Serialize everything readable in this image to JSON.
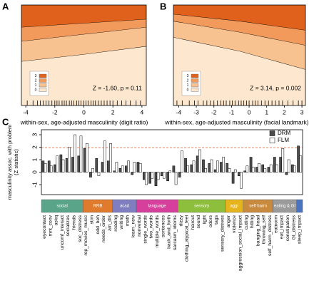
{
  "chart_data": [
    {
      "type": "stacked_area",
      "panel": "A",
      "xlabel": "within-sex, age-adjusted masculinity (digit ratio)",
      "annotation": "Z = -1.60, p = 0.11",
      "xlim": [
        -4.3,
        4.3
      ],
      "xticks": [
        -4,
        -2,
        0,
        2,
        4
      ],
      "ylim": [
        0,
        1
      ],
      "x": [
        -4.3,
        0,
        4.3
      ],
      "series": [
        {
          "name": "0",
          "color": "#fde8cf",
          "values": [
            0.44,
            0.51,
            0.59
          ]
        },
        {
          "name": "1",
          "color": "#f7c190",
          "values": [
            0.2,
            0.2,
            0.19
          ]
        },
        {
          "name": "2",
          "color": "#f29a5c",
          "values": [
            0.14,
            0.11,
            0.08
          ]
        },
        {
          "name": "3",
          "color": "#e0611c",
          "values": [
            0.22,
            0.18,
            0.14
          ]
        }
      ],
      "rug": [
        -3.9,
        -3.5,
        -3.2,
        -3.0,
        -2.8,
        -2.6,
        -2.4,
        -2.2,
        -2.0,
        -1.85,
        -1.7,
        -1.5,
        -1.35,
        -1.2,
        -1.0,
        -0.85,
        -0.7,
        -0.5,
        -0.35,
        -0.2,
        0.0,
        0.15,
        0.3,
        0.5,
        0.65,
        0.8,
        1.0,
        1.2,
        1.4,
        1.6,
        1.8,
        2.0,
        2.3,
        2.6,
        2.9,
        3.2,
        3.6,
        3.9
      ]
    },
    {
      "type": "stacked_area",
      "panel": "B",
      "xlabel": "within-sex, age-adjusted masculinity (facial landmark)",
      "annotation": "Z = 3.14, p = 0.002",
      "xlim": [
        -4.3,
        3.2
      ],
      "xticks": [
        -4,
        -3,
        -2,
        -1,
        0,
        1,
        2,
        3
      ],
      "ylim": [
        0,
        1
      ],
      "x": [
        -4.3,
        -0.5,
        3.2
      ],
      "series": [
        {
          "name": "0",
          "color": "#fde8cf",
          "values": [
            0.68,
            0.54,
            0.36
          ]
        },
        {
          "name": "1",
          "color": "#f7c190",
          "values": [
            0.16,
            0.19,
            0.24
          ]
        },
        {
          "name": "2",
          "color": "#f29a5c",
          "values": [
            0.07,
            0.11,
            0.15
          ]
        },
        {
          "name": "3",
          "color": "#e0611c",
          "values": [
            0.09,
            0.16,
            0.25
          ]
        }
      ],
      "rug": [
        -4.1,
        -3.8,
        -3.4,
        -3.1,
        -2.9,
        -2.6,
        -2.4,
        -2.2,
        -2.0,
        -1.8,
        -1.6,
        -1.45,
        -1.3,
        -1.1,
        -0.95,
        -0.8,
        -0.6,
        -0.45,
        -0.3,
        -0.15,
        0.0,
        0.2,
        0.35,
        0.5,
        0.7,
        0.9,
        1.1,
        1.3,
        1.5,
        1.7,
        1.9,
        2.2,
        2.5,
        2.8,
        3.0
      ]
    },
    {
      "type": "bar",
      "panel": "C",
      "ylabel": [
        "masculinity assoc. with problem",
        "(Z statistic)"
      ],
      "ylim": [
        -1.8,
        3.4
      ],
      "yticks": [
        -1,
        0,
        1,
        2,
        3
      ],
      "hline": 1.96,
      "hline_color": "#e8825a",
      "categories": [
        "eyecontact",
        "mnt_conv",
        "askq",
        "uncomf_interact",
        "socializes",
        "friends",
        "soc_distress",
        "rep_movies_music",
        "stim",
        "odd_beh",
        "needs_order",
        "am_dis",
        "reading",
        "writing",
        "math",
        "learn_new",
        "nonverbal",
        "single_words",
        "two_words",
        "multiple_words",
        "sentences",
        "back_and_forth",
        "sarcasm_idioms",
        "dizzy",
        "clothing_atypical_feel",
        "haircut",
        "sound",
        "light",
        "odors",
        "tags",
        "sensory_distress",
        "anger",
        "violence",
        "aggression_social_impact",
        "cutting",
        "hitting",
        "banging_head",
        "throwing_self",
        "self_harm_distress",
        "eatnorm",
        "eat_impact",
        "constipation",
        "GI_distress",
        "sleep_impact"
      ],
      "series": [
        {
          "name": "DRM",
          "color": "#4d4d4d",
          "values": [
            0.9,
            0.9,
            0.6,
            1.4,
            1.1,
            1.2,
            1.3,
            1.9,
            -0.4,
            1.1,
            0.8,
            0.9,
            0.1,
            0.3,
            0.5,
            -0.2,
            0.8,
            -0.6,
            -0.9,
            -1.1,
            -0.3,
            -0.7,
            0.5,
            -0.4,
            1.1,
            0.6,
            1.3,
            1.0,
            0.7,
            0.2,
            0.8,
            0.7,
            -0.9,
            -0.3,
            0.1,
            1.2,
            0.4,
            0.6,
            0.4,
            1.2,
            1.2,
            -0.2,
            0.6,
            2.1
          ]
        },
        {
          "name": "FLM",
          "color": "#ffffff",
          "values": [
            0.7,
            0.5,
            1.3,
            1.0,
            2.0,
            3.0,
            2.9,
            2.3,
            0.3,
            -0.3,
            2.5,
            2.3,
            0.8,
            0.5,
            0.9,
            0.8,
            0.7,
            -1.0,
            -0.5,
            -0.6,
            -0.5,
            0.1,
            -1.0,
            1.7,
            0.5,
            0.9,
            1.8,
            0.3,
            1.0,
            0.9,
            1.2,
            0.3,
            0.2,
            -1.3,
            0.5,
            0.4,
            0.7,
            0.3,
            0.6,
            0.6,
            1.9,
            1.0,
            0.5,
            1.3
          ]
        }
      ],
      "domains": [
        {
          "label": "social",
          "start": 0,
          "end": 6,
          "color": "#5aa58a"
        },
        {
          "label": "RRB",
          "start": 7,
          "end": 11,
          "color": "#e07b2d"
        },
        {
          "label": "acad",
          "start": 12,
          "end": 15,
          "color": "#7e7ec0"
        },
        {
          "label": "language",
          "start": 16,
          "end": 22,
          "color": "#d6409c"
        },
        {
          "label": "sensory",
          "start": 23,
          "end": 30,
          "color": "#8dbe3c"
        },
        {
          "label": "aggr",
          "start": 31,
          "end": 33,
          "color": "#e6b41d"
        },
        {
          "label": "self harm",
          "start": 34,
          "end": 38,
          "color": "#c78a3e"
        },
        {
          "label": "eating & GI",
          "start": 39,
          "end": 42,
          "color": "#9b9b9b"
        },
        {
          "label": null,
          "start": 43,
          "end": 43,
          "color": "#4a74c0"
        }
      ]
    }
  ]
}
